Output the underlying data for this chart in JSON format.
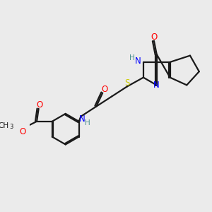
{
  "bg_color": "#ebebeb",
  "bond_color": "#1a1a1a",
  "colors": {
    "N": "#0000ff",
    "O": "#ff0000",
    "S": "#cccc00",
    "C": "#1a1a1a",
    "H": "#4a9090"
  },
  "figsize": [
    3.0,
    3.0
  ],
  "dpi": 100
}
